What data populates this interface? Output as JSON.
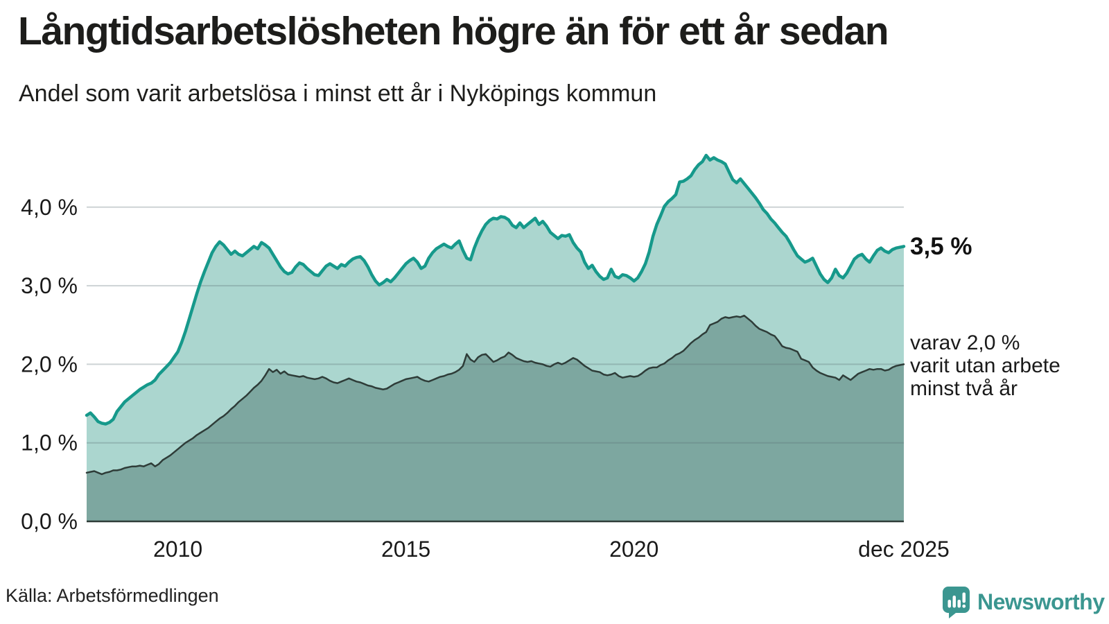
{
  "header": {
    "title": "Långtidsarbetslösheten högre än för ett år sedan",
    "subtitle": "Andel som varit arbetslösa i minst ett år i Nyköpings kommun"
  },
  "annotations": {
    "end_value": "3,5 %",
    "sub_line1": "varav 2,0 %",
    "sub_line2": "varit utan arbete",
    "sub_line3": "minst två år"
  },
  "footer": {
    "source": "Källa: Arbetsförmedlingen",
    "logo_text": "Newsworthy"
  },
  "colors": {
    "line_1yr": "#16998b",
    "fill_1yr": "#abd6cf",
    "line_2yr": "#2e3c38",
    "fill_2yr": "#7da7a0",
    "gridline": "#d8dde0",
    "baseline": "#2e3c38",
    "text": "#1a1a1a",
    "logo_teal": "#3b9690"
  },
  "chart_data": {
    "type": "area",
    "title": "Långtidsarbetslösheten högre än för ett år sedan",
    "subtitle": "Andel som varit arbetslösa i minst ett år i Nyköpings kommun",
    "unit": "%",
    "grid": true,
    "x_start_year": 2008,
    "points_per_year": 12,
    "x_end": "dec 2025",
    "ylim": [
      0,
      4.7
    ],
    "y_axis_ticks": [
      {
        "value": 0,
        "label": "0,0 %"
      },
      {
        "value": 1,
        "label": "1,0 %"
      },
      {
        "value": 2,
        "label": "2,0 %"
      },
      {
        "value": 3,
        "label": "3,0 %"
      },
      {
        "value": 4,
        "label": "4,0 %"
      }
    ],
    "x_axis_ticks": [
      {
        "year": 2010,
        "label": "2010"
      },
      {
        "year": 2015,
        "label": "2015"
      },
      {
        "year": 2020,
        "label": "2020"
      },
      {
        "year": 2025.9167,
        "label": "dec 2025"
      }
    ],
    "series": [
      {
        "name": "Arbetslösa minst ett år",
        "end_value_label": "3,5 %",
        "line_color": "#16998b",
        "fill_color": "#abd6cf",
        "line_width": 4.5,
        "values": [
          1.35,
          1.38,
          1.33,
          1.27,
          1.25,
          1.24,
          1.26,
          1.3,
          1.4,
          1.46,
          1.52,
          1.56,
          1.6,
          1.64,
          1.68,
          1.71,
          1.74,
          1.76,
          1.8,
          1.87,
          1.92,
          1.97,
          2.02,
          2.09,
          2.16,
          2.28,
          2.42,
          2.58,
          2.74,
          2.9,
          3.05,
          3.18,
          3.3,
          3.42,
          3.5,
          3.56,
          3.52,
          3.46,
          3.4,
          3.44,
          3.4,
          3.38,
          3.42,
          3.46,
          3.5,
          3.47,
          3.55,
          3.52,
          3.48,
          3.4,
          3.32,
          3.24,
          3.18,
          3.15,
          3.17,
          3.24,
          3.29,
          3.27,
          3.22,
          3.18,
          3.14,
          3.13,
          3.19,
          3.25,
          3.28,
          3.25,
          3.22,
          3.27,
          3.25,
          3.3,
          3.34,
          3.36,
          3.37,
          3.32,
          3.24,
          3.14,
          3.06,
          3.01,
          3.04,
          3.08,
          3.05,
          3.1,
          3.16,
          3.22,
          3.28,
          3.32,
          3.35,
          3.3,
          3.22,
          3.25,
          3.35,
          3.42,
          3.47,
          3.5,
          3.53,
          3.5,
          3.48,
          3.53,
          3.57,
          3.45,
          3.35,
          3.33,
          3.48,
          3.6,
          3.7,
          3.78,
          3.83,
          3.86,
          3.85,
          3.88,
          3.87,
          3.84,
          3.77,
          3.74,
          3.8,
          3.74,
          3.78,
          3.82,
          3.86,
          3.78,
          3.82,
          3.76,
          3.68,
          3.64,
          3.6,
          3.64,
          3.63,
          3.65,
          3.55,
          3.48,
          3.43,
          3.3,
          3.22,
          3.26,
          3.18,
          3.12,
          3.08,
          3.1,
          3.21,
          3.12,
          3.1,
          3.14,
          3.13,
          3.1,
          3.06,
          3.1,
          3.18,
          3.28,
          3.43,
          3.63,
          3.78,
          3.89,
          4.01,
          4.07,
          4.11,
          4.16,
          4.32,
          4.33,
          4.36,
          4.4,
          4.48,
          4.54,
          4.58,
          4.66,
          4.6,
          4.63,
          4.6,
          4.58,
          4.55,
          4.45,
          4.35,
          4.31,
          4.36,
          4.3,
          4.24,
          4.18,
          4.12,
          4.05,
          3.97,
          3.92,
          3.85,
          3.8,
          3.74,
          3.68,
          3.63,
          3.55,
          3.46,
          3.38,
          3.34,
          3.3,
          3.32,
          3.35,
          3.25,
          3.15,
          3.08,
          3.04,
          3.1,
          3.21,
          3.13,
          3.1,
          3.16,
          3.25,
          3.34,
          3.38,
          3.4,
          3.34,
          3.3,
          3.38,
          3.45,
          3.48,
          3.44,
          3.42,
          3.46,
          3.48,
          3.49,
          3.5
        ]
      },
      {
        "name": "Arbetslösa minst två år",
        "end_value_label": "2,0 %",
        "line_color": "#2e3c38",
        "fill_color": "#7da7a0",
        "line_width": 2.5,
        "values": [
          0.62,
          0.63,
          0.64,
          0.62,
          0.6,
          0.62,
          0.63,
          0.65,
          0.65,
          0.66,
          0.68,
          0.69,
          0.7,
          0.7,
          0.71,
          0.7,
          0.72,
          0.74,
          0.7,
          0.73,
          0.78,
          0.81,
          0.84,
          0.88,
          0.92,
          0.96,
          1.0,
          1.03,
          1.06,
          1.1,
          1.13,
          1.16,
          1.19,
          1.23,
          1.27,
          1.31,
          1.34,
          1.38,
          1.43,
          1.47,
          1.52,
          1.56,
          1.6,
          1.65,
          1.7,
          1.74,
          1.79,
          1.86,
          1.94,
          1.9,
          1.93,
          1.88,
          1.91,
          1.87,
          1.86,
          1.85,
          1.84,
          1.85,
          1.83,
          1.82,
          1.81,
          1.82,
          1.84,
          1.82,
          1.79,
          1.77,
          1.76,
          1.78,
          1.8,
          1.82,
          1.8,
          1.78,
          1.77,
          1.75,
          1.73,
          1.72,
          1.7,
          1.69,
          1.68,
          1.69,
          1.72,
          1.75,
          1.77,
          1.79,
          1.81,
          1.82,
          1.83,
          1.84,
          1.81,
          1.79,
          1.78,
          1.8,
          1.82,
          1.84,
          1.85,
          1.87,
          1.88,
          1.9,
          1.93,
          1.98,
          2.13,
          2.06,
          2.03,
          2.09,
          2.12,
          2.13,
          2.08,
          2.03,
          2.05,
          2.08,
          2.1,
          2.15,
          2.12,
          2.08,
          2.06,
          2.04,
          2.03,
          2.04,
          2.02,
          2.01,
          2.0,
          1.98,
          1.97,
          2.0,
          2.02,
          2.0,
          2.02,
          2.05,
          2.08,
          2.06,
          2.02,
          1.98,
          1.95,
          1.92,
          1.91,
          1.9,
          1.87,
          1.86,
          1.87,
          1.89,
          1.85,
          1.83,
          1.84,
          1.85,
          1.84,
          1.85,
          1.88,
          1.92,
          1.95,
          1.96,
          1.96,
          1.99,
          2.01,
          2.05,
          2.08,
          2.12,
          2.14,
          2.17,
          2.22,
          2.27,
          2.31,
          2.34,
          2.38,
          2.41,
          2.5,
          2.52,
          2.54,
          2.58,
          2.6,
          2.59,
          2.6,
          2.61,
          2.6,
          2.62,
          2.58,
          2.54,
          2.49,
          2.45,
          2.43,
          2.41,
          2.38,
          2.36,
          2.3,
          2.23,
          2.21,
          2.2,
          2.18,
          2.16,
          2.07,
          2.05,
          2.03,
          1.96,
          1.92,
          1.89,
          1.87,
          1.85,
          1.84,
          1.83,
          1.8,
          1.86,
          1.83,
          1.8,
          1.84,
          1.88,
          1.9,
          1.92,
          1.94,
          1.93,
          1.94,
          1.94,
          1.92,
          1.93,
          1.96,
          1.98,
          1.99,
          2.0
        ]
      }
    ]
  }
}
